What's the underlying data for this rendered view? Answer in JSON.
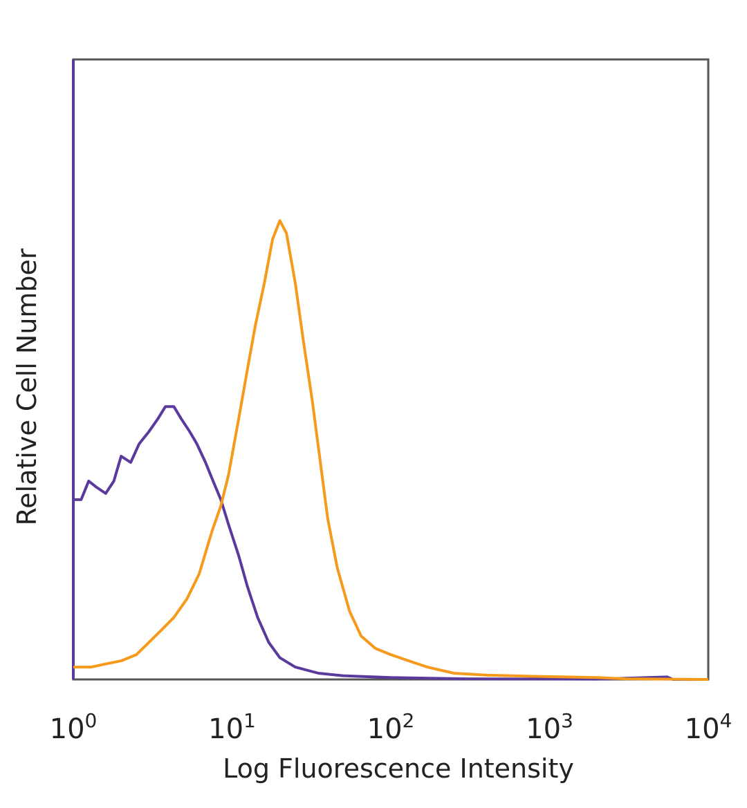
{
  "chart_data": {
    "type": "line",
    "title": "",
    "xlabel": "Log Fluorescence Intensity",
    "ylabel": "Relative Cell Number",
    "xscale": "log",
    "xlim": [
      1,
      10000
    ],
    "ylim": [
      0,
      100
    ],
    "grid": false,
    "legend": "none",
    "x_ticks": [
      {
        "base": "10",
        "exp": "0",
        "value": 1
      },
      {
        "base": "10",
        "exp": "1",
        "value": 10
      },
      {
        "base": "10",
        "exp": "2",
        "value": 100
      },
      {
        "base": "10",
        "exp": "3",
        "value": 1000
      },
      {
        "base": "10",
        "exp": "4",
        "value": 10000
      }
    ],
    "series": [
      {
        "color": "#5b3a9e",
        "points": [
          [
            1.0,
            29
          ],
          [
            1.12,
            29
          ],
          [
            1.25,
            32
          ],
          [
            1.4,
            31
          ],
          [
            1.6,
            30
          ],
          [
            1.8,
            32
          ],
          [
            2.0,
            36
          ],
          [
            2.3,
            35
          ],
          [
            2.6,
            38
          ],
          [
            3.0,
            40
          ],
          [
            3.4,
            42
          ],
          [
            3.8,
            44
          ],
          [
            4.3,
            44
          ],
          [
            4.8,
            42
          ],
          [
            5.4,
            40
          ],
          [
            6.0,
            38
          ],
          [
            6.8,
            35
          ],
          [
            7.6,
            32
          ],
          [
            8.5,
            29
          ],
          [
            9.5,
            25
          ],
          [
            11.0,
            20
          ],
          [
            12.5,
            15
          ],
          [
            14.5,
            10
          ],
          [
            17.0,
            6
          ],
          [
            20.0,
            3.5
          ],
          [
            25.0,
            2
          ],
          [
            35.0,
            1
          ],
          [
            50.0,
            0.6
          ],
          [
            100,
            0.3
          ],
          [
            300,
            0.1
          ],
          [
            2000,
            0.05
          ],
          [
            5500,
            0.4
          ],
          [
            6000,
            0.0
          ],
          [
            10000,
            0
          ]
        ]
      },
      {
        "color": "#f59a1c",
        "points": [
          [
            1.0,
            2
          ],
          [
            1.3,
            2
          ],
          [
            1.6,
            2.5
          ],
          [
            2.0,
            3
          ],
          [
            2.5,
            4
          ],
          [
            3.0,
            6
          ],
          [
            3.6,
            8
          ],
          [
            4.3,
            10
          ],
          [
            5.2,
            13
          ],
          [
            6.2,
            17
          ],
          [
            7.5,
            24
          ],
          [
            8.5,
            28
          ],
          [
            9.5,
            33
          ],
          [
            11.0,
            42
          ],
          [
            12.5,
            50
          ],
          [
            14.0,
            57
          ],
          [
            16.0,
            64
          ],
          [
            18.0,
            71
          ],
          [
            20.0,
            74
          ],
          [
            22.0,
            72
          ],
          [
            25.0,
            64
          ],
          [
            28.0,
            55
          ],
          [
            32.0,
            45
          ],
          [
            36.0,
            35
          ],
          [
            40.0,
            26
          ],
          [
            46.0,
            18
          ],
          [
            55.0,
            11
          ],
          [
            65.0,
            7
          ],
          [
            80.0,
            5
          ],
          [
            100,
            4
          ],
          [
            130,
            3
          ],
          [
            170,
            2
          ],
          [
            250,
            1
          ],
          [
            400,
            0.7
          ],
          [
            800,
            0.5
          ],
          [
            2000,
            0.3
          ],
          [
            3000,
            0.1
          ],
          [
            10000,
            0
          ]
        ]
      }
    ]
  }
}
